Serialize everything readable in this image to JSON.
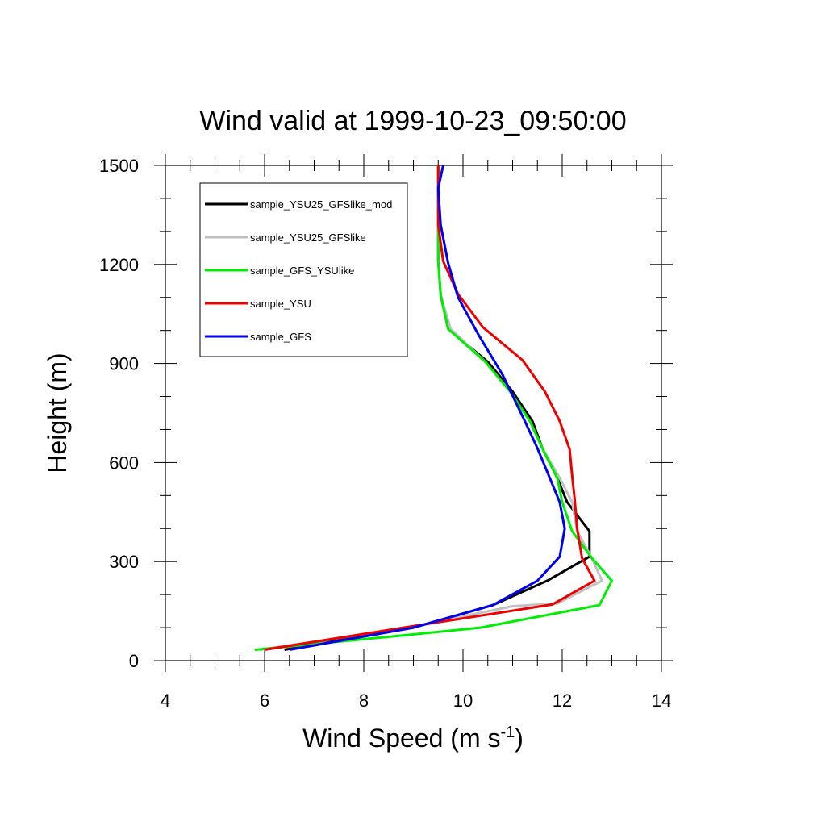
{
  "chart_data": {
    "type": "line",
    "title": "Wind valid at 1999-10-23_09:50:00",
    "xlabel": "Wind Speed (m s",
    "xlabel_sup": "-1",
    "xlabel_end": ")",
    "ylabel": "Height (m)",
    "xlim": [
      4,
      14
    ],
    "ylim": [
      0,
      1500
    ],
    "xticks": [
      4,
      6,
      8,
      10,
      12,
      14
    ],
    "yticks": [
      0,
      300,
      600,
      900,
      1200,
      1500
    ],
    "legend_position": "top-left",
    "series": [
      {
        "name": "sample_YSU25_GFSlike_mod",
        "color": "#000000",
        "points": [
          [
            6.4,
            33
          ],
          [
            9.0,
            100
          ],
          [
            10.6,
            168
          ],
          [
            11.7,
            242
          ],
          [
            12.55,
            315
          ],
          [
            12.55,
            392
          ],
          [
            12.1,
            480
          ],
          [
            11.9,
            553
          ],
          [
            11.6,
            643
          ],
          [
            11.4,
            725
          ],
          [
            11.0,
            815
          ],
          [
            10.5,
            905
          ],
          [
            9.7,
            1005
          ],
          [
            9.55,
            1108
          ],
          [
            9.5,
            1210
          ],
          [
            9.5,
            1320
          ],
          [
            9.5,
            1500
          ]
        ]
      },
      {
        "name": "sample_YSU25_GFSlike",
        "color": "#c0c0c0",
        "points": [
          [
            5.9,
            33
          ],
          [
            8.9,
            100
          ],
          [
            11.0,
            165
          ],
          [
            11.9,
            173
          ],
          [
            12.8,
            242
          ],
          [
            12.6,
            310
          ],
          [
            12.3,
            392
          ],
          [
            12.2,
            480
          ],
          [
            11.95,
            553
          ],
          [
            11.6,
            643
          ],
          [
            11.35,
            725
          ],
          [
            10.95,
            815
          ],
          [
            10.45,
            905
          ],
          [
            9.75,
            1005
          ],
          [
            9.55,
            1108
          ],
          [
            9.5,
            1210
          ],
          [
            9.5,
            1320
          ],
          [
            9.5,
            1500
          ]
        ]
      },
      {
        "name": "sample_GFS_YSUlike",
        "color": "#00ee00",
        "points": [
          [
            5.8,
            33
          ],
          [
            8.7,
            75
          ],
          [
            10.35,
            100
          ],
          [
            12.75,
            168
          ],
          [
            13.0,
            242
          ],
          [
            12.6,
            310
          ],
          [
            12.2,
            392
          ],
          [
            12.0,
            480
          ],
          [
            11.9,
            553
          ],
          [
            11.6,
            643
          ],
          [
            11.35,
            725
          ],
          [
            10.95,
            815
          ],
          [
            10.45,
            905
          ],
          [
            9.7,
            1005
          ],
          [
            9.55,
            1108
          ],
          [
            9.5,
            1210
          ],
          [
            9.5,
            1320
          ],
          [
            9.5,
            1500
          ]
        ]
      },
      {
        "name": "sample_YSU",
        "color": "#ee0000",
        "points": [
          [
            6.0,
            33
          ],
          [
            8.8,
            100
          ],
          [
            11.8,
            170
          ],
          [
            12.65,
            242
          ],
          [
            12.4,
            310
          ],
          [
            12.3,
            400
          ],
          [
            12.25,
            490
          ],
          [
            12.2,
            560
          ],
          [
            12.15,
            640
          ],
          [
            11.95,
            725
          ],
          [
            11.65,
            815
          ],
          [
            11.2,
            910
          ],
          [
            10.4,
            1010
          ],
          [
            9.9,
            1110
          ],
          [
            9.6,
            1210
          ],
          [
            9.5,
            1320
          ],
          [
            9.5,
            1500
          ]
        ]
      },
      {
        "name": "sample_GFS",
        "color": "#0000ee",
        "points": [
          [
            6.5,
            33
          ],
          [
            9.0,
            100
          ],
          [
            10.6,
            168
          ],
          [
            11.5,
            242
          ],
          [
            11.95,
            315
          ],
          [
            12.05,
            400
          ],
          [
            11.95,
            480
          ],
          [
            11.75,
            553
          ],
          [
            11.5,
            643
          ],
          [
            11.2,
            740
          ],
          [
            10.8,
            865
          ],
          [
            10.3,
            990
          ],
          [
            9.9,
            1100
          ],
          [
            9.7,
            1205
          ],
          [
            9.55,
            1320
          ],
          [
            9.5,
            1430
          ],
          [
            9.6,
            1500
          ]
        ]
      }
    ]
  }
}
